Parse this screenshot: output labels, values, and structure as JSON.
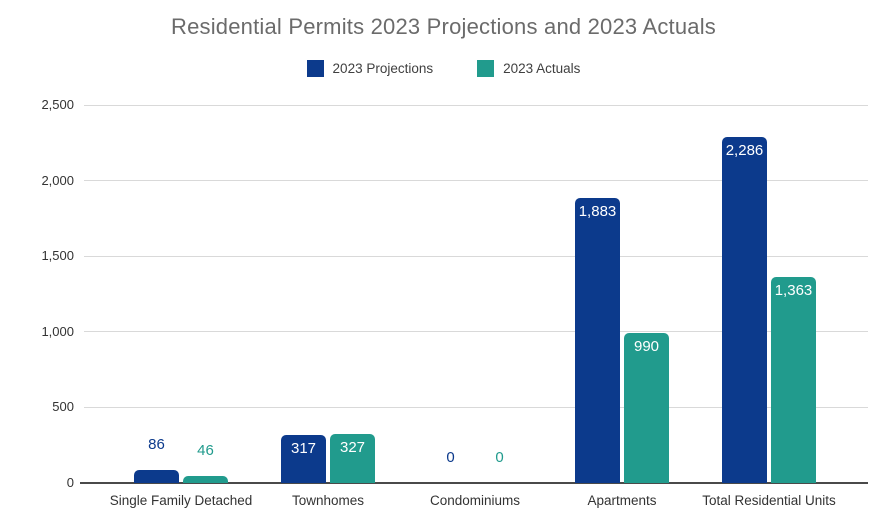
{
  "title": "Residential Permits 2023 Projections and 2023 Actuals",
  "colors": {
    "projections": "#0c3a8c",
    "actuals": "#219b8d",
    "title_text": "#6b6b6b",
    "axis_text": "#333333",
    "gridline": "#d9d9d9",
    "axis_line": "#4a4a4a",
    "background": "#ffffff"
  },
  "chart_data": {
    "type": "bar",
    "title": "Residential Permits 2023 Projections and 2023 Actuals",
    "categories": [
      "Single Family Detached",
      "Townhomes",
      "Condominiums",
      "Apartments",
      "Total Residential Units"
    ],
    "series": [
      {
        "name": "2023 Projections",
        "color": "#0c3a8c",
        "values": [
          86,
          317,
          0,
          1883,
          2286
        ],
        "labels": [
          "86",
          "317",
          "0",
          "1,883",
          "2,286"
        ]
      },
      {
        "name": "2023 Actuals",
        "color": "#219b8d",
        "values": [
          46,
          327,
          0,
          990,
          1363
        ],
        "labels": [
          "46",
          "327",
          "0",
          "990",
          "1,363"
        ]
      }
    ],
    "xlabel": "",
    "ylabel": "",
    "ylim": [
      0,
      2500
    ],
    "y_tick_interval": 500,
    "y_tick_labels": [
      "0",
      "500",
      "1,000",
      "1,500",
      "2,000",
      "2,500"
    ],
    "grid": true,
    "legend_position": "top",
    "data_labels": "inside-top for tall bars, above bar in series color for short/zero bars"
  }
}
